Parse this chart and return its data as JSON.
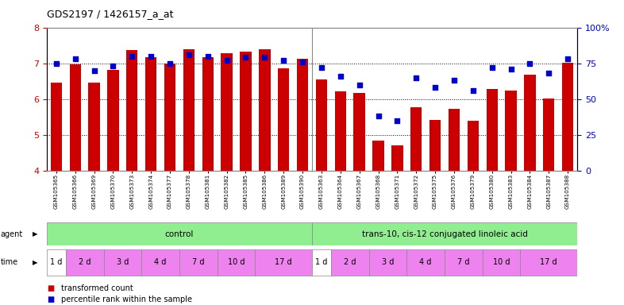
{
  "title": "GDS2197 / 1426157_a_at",
  "bar_color": "#cc0000",
  "dot_color": "#0000cc",
  "samples": [
    "GSM105365",
    "GSM105366",
    "GSM105369",
    "GSM105370",
    "GSM105373",
    "GSM105374",
    "GSM105377",
    "GSM105378",
    "GSM105381",
    "GSM105382",
    "GSM105385",
    "GSM105386",
    "GSM105389",
    "GSM105390",
    "GSM105363",
    "GSM105364",
    "GSM105367",
    "GSM105368",
    "GSM105371",
    "GSM105372",
    "GSM105375",
    "GSM105376",
    "GSM105379",
    "GSM105380",
    "GSM105383",
    "GSM105384",
    "GSM105387",
    "GSM105388"
  ],
  "bar_values": [
    6.45,
    6.97,
    6.47,
    6.82,
    7.38,
    7.18,
    7.0,
    7.39,
    7.18,
    7.27,
    7.33,
    7.4,
    6.85,
    7.13,
    6.55,
    6.22,
    6.18,
    4.85,
    4.72,
    5.78,
    5.43,
    5.74,
    5.39,
    6.28,
    6.23,
    6.68,
    6.02,
    7.02
  ],
  "dot_values": [
    75,
    78,
    70,
    73,
    80,
    80,
    75,
    81,
    80,
    77,
    79,
    79,
    77,
    76,
    72,
    66,
    60,
    38,
    35,
    65,
    58,
    63,
    56,
    72,
    71,
    75,
    68,
    78
  ],
  "ylim_left": [
    4,
    8
  ],
  "ylim_right": [
    0,
    100
  ],
  "yticks_left": [
    4,
    5,
    6,
    7,
    8
  ],
  "yticks_right": [
    0,
    25,
    50,
    75,
    100
  ],
  "time_groups_info": [
    [
      0,
      1,
      "1 d",
      "#ffffff"
    ],
    [
      1,
      3,
      "2 d",
      "#ee82ee"
    ],
    [
      3,
      5,
      "3 d",
      "#ee82ee"
    ],
    [
      5,
      7,
      "4 d",
      "#ee82ee"
    ],
    [
      7,
      9,
      "7 d",
      "#ee82ee"
    ],
    [
      9,
      11,
      "10 d",
      "#ee82ee"
    ],
    [
      11,
      14,
      "17 d",
      "#ee82ee"
    ],
    [
      14,
      15,
      "1 d",
      "#ffffff"
    ],
    [
      15,
      17,
      "2 d",
      "#ee82ee"
    ],
    [
      17,
      19,
      "3 d",
      "#ee82ee"
    ],
    [
      19,
      21,
      "4 d",
      "#ee82ee"
    ],
    [
      21,
      23,
      "7 d",
      "#ee82ee"
    ],
    [
      23,
      25,
      "10 d",
      "#ee82ee"
    ],
    [
      25,
      28,
      "17 d",
      "#ee82ee"
    ]
  ],
  "legend_items": [
    {
      "label": "transformed count",
      "color": "#cc0000"
    },
    {
      "label": "percentile rank within the sample",
      "color": "#0000cc"
    }
  ],
  "plot_bg": "#ffffff",
  "agent_color": "#90ee90",
  "time_color_pink": "#ee82ee",
  "time_color_white": "#ffffff"
}
